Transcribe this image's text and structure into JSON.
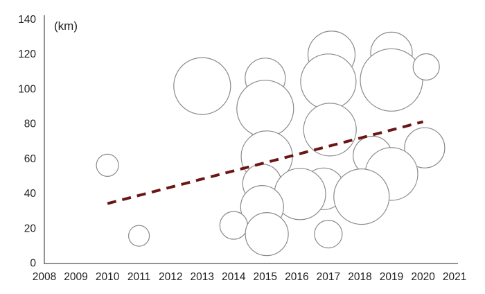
{
  "chart_data": {
    "type": "scatter",
    "subtype": "bubble",
    "title": "",
    "xlabel": "",
    "ylabel": "",
    "unit_label": "(km)",
    "xlim": [
      2008,
      2021
    ],
    "ylim": [
      0,
      140
    ],
    "grid": false,
    "legend": "none",
    "x_ticks": [
      "2008",
      "2009",
      "2010",
      "2011",
      "2012",
      "2013",
      "2014",
      "2015",
      "2016",
      "2017",
      "2018",
      "2019",
      "2020",
      "2021"
    ],
    "x_tick_values": [
      2008,
      2009,
      2010,
      2011,
      2012,
      2013,
      2014,
      2015,
      2016,
      2017,
      2018,
      2019,
      2020,
      2021
    ],
    "y_ticks": [
      "0",
      "20",
      "40",
      "60",
      "80",
      "100",
      "120",
      "140"
    ],
    "y_tick_values": [
      0,
      20,
      40,
      60,
      80,
      100,
      120,
      140
    ],
    "bubbles": [
      {
        "x": 2015.0,
        "y": 106.0,
        "r": 29
      },
      {
        "x": 2017.1,
        "y": 119.5,
        "r": 34
      },
      {
        "x": 2019.0,
        "y": 120.5,
        "r": 30
      },
      {
        "x": 2017.0,
        "y": 104.0,
        "r": 40
      },
      {
        "x": 2019.0,
        "y": 105.0,
        "r": 45
      },
      {
        "x": 2020.1,
        "y": 112.5,
        "r": 19
      },
      {
        "x": 2013.0,
        "y": 101.5,
        "r": 41
      },
      {
        "x": 2015.0,
        "y": 88.5,
        "r": 41
      },
      {
        "x": 2017.05,
        "y": 76.5,
        "r": 38
      },
      {
        "x": 2020.05,
        "y": 66.0,
        "r": 29
      },
      {
        "x": 2018.4,
        "y": 61.5,
        "r": 28
      },
      {
        "x": 2015.05,
        "y": 61.0,
        "r": 37
      },
      {
        "x": 2010.0,
        "y": 56.0,
        "r": 16
      },
      {
        "x": 2019.0,
        "y": 51.0,
        "r": 38
      },
      {
        "x": 2014.9,
        "y": 45.5,
        "r": 28
      },
      {
        "x": 2016.85,
        "y": 42.5,
        "r": 30
      },
      {
        "x": 2016.1,
        "y": 39.5,
        "r": 37
      },
      {
        "x": 2018.05,
        "y": 38.0,
        "r": 40
      },
      {
        "x": 2014.9,
        "y": 32.0,
        "r": 31
      },
      {
        "x": 2014.0,
        "y": 21.5,
        "r": 20
      },
      {
        "x": 2011.0,
        "y": 15.5,
        "r": 15
      },
      {
        "x": 2015.05,
        "y": 16.5,
        "r": 31
      },
      {
        "x": 2017.0,
        "y": 16.5,
        "r": 20
      }
    ],
    "trend_line": {
      "x1": 2010.0,
      "y1": 34,
      "x2": 2020.0,
      "y2": 81,
      "style": "dashed"
    },
    "colors": {
      "bubble_stroke": "#8a8a8a",
      "bubble_fill": "#ffffff",
      "axis": "#6e6e6e",
      "text": "#212121",
      "trend": "#6b1515",
      "background": "#ffffff"
    }
  }
}
